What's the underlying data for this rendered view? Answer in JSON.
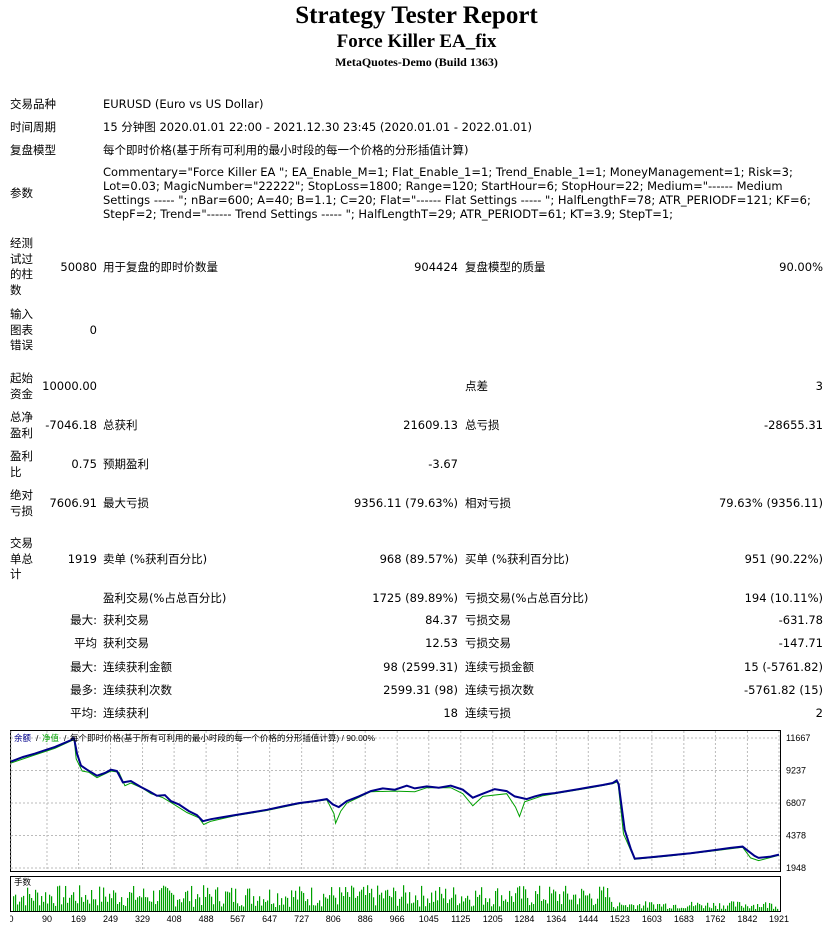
{
  "report": {
    "title": "Strategy Tester Report",
    "ea_name": "Force Killer EA_fix",
    "server": "MetaQuotes-Demo (Build 1363)"
  },
  "info": {
    "symbol_label": "交易品种",
    "symbol_value": "EURUSD (Euro vs US Dollar)",
    "period_label": "时间周期",
    "period_value": "15 分钟图 2020.01.01 22:00 - 2021.12.30 23:45 (2020.01.01 - 2022.01.01)",
    "model_label": "复盘模型",
    "model_value": "每个即时价格(基于所有可利用的最小时段的每一个价格的分形插值计算)",
    "params_label": "参数",
    "params_value": "Commentary=\"Force Killer EA \"; EA_Enable_M=1; Flat_Enable_1=1; Trend_Enable_1=1; MoneyManagement=1; Risk=3; Lot=0.03; MagicNumber=\"22222\"; StopLoss=1800; Range=120; StartHour=6; StopHour=22; Medium=\"------ Medium Settings ----- \"; nBar=600; A=40; B=1.1; C=20; Flat=\"------ Flat Settings ----- \"; HalfLengthF=78; ATR_PERIODF=121; KF=6; StepF=2; Trend=\"------ Trend Settings ----- \"; HalfLengthT=29; ATR_PERIODT=61; KT=3.9; StepT=1;"
  },
  "stats": {
    "bars_label": "经测试过的柱数",
    "bars_value": "50080",
    "ticks_label": "用于复盘的即时价数量",
    "ticks_value": "904424",
    "quality_label": "复盘模型的质量",
    "quality_value": "90.00%",
    "errors_label": "输入图表错误",
    "errors_value": "0",
    "deposit_label": "起始资金",
    "deposit_value": "10000.00",
    "spread_label": "点差",
    "spread_value": "3",
    "net_label": "总净盈利",
    "net_value": "-7046.18",
    "gross_profit_label": "总获利",
    "gross_profit_value": "21609.13",
    "gross_loss_label": "总亏损",
    "gross_loss_value": "-28655.31",
    "pf_label": "盈利比",
    "pf_value": "0.75",
    "payoff_label": "预期盈利",
    "payoff_value": "-3.67",
    "abs_dd_label": "绝对亏损",
    "abs_dd_value": "7606.91",
    "max_dd_label": "最大亏损",
    "max_dd_value": "9356.11 (79.63%)",
    "rel_dd_label": "相对亏损",
    "rel_dd_value": "79.63% (9356.11)",
    "trades_label": "交易单总计",
    "trades_value": "1919",
    "short_label": "卖单 (%获利百分比)",
    "short_value": "968 (89.57%)",
    "long_label": "买单 (%获利百分比)",
    "long_value": "951 (90.22%)",
    "win_label": "盈利交易(%占总百分比)",
    "win_value": "1725 (89.89%)",
    "loss_label": "亏损交易(%占总百分比)",
    "loss_value": "194 (10.11%)",
    "rows": [
      {
        "prefix": "最大:",
        "l1": "获利交易",
        "v1": "84.37",
        "l2": "亏损交易",
        "v2": "-631.78"
      },
      {
        "prefix": "平均",
        "l1": "获利交易",
        "v1": "12.53",
        "l2": "亏损交易",
        "v2": "-147.71"
      },
      {
        "prefix": "最大:",
        "l1": "连续获利金额",
        "v1": "98 (2599.31)",
        "l2": "连续亏损金额",
        "v2": "15 (-5761.82)"
      },
      {
        "prefix": "最多:",
        "l1": "连续获利次数",
        "v1": "2599.31 (98)",
        "l2": "连续亏损次数",
        "v2": "-5761.82 (15)"
      },
      {
        "prefix": "平均:",
        "l1": "连续获利",
        "v1": "18",
        "l2": "连续亏损",
        "v2": "2"
      }
    ]
  },
  "chart_data": {
    "type": "line",
    "legend_balance": "余额",
    "legend_equity": "净值",
    "legend_text": "每个即时价格(基于所有可利用的最小时段的每一个价格的分形插值计算) / 90.00%",
    "volume_label": "手数",
    "y_ticks": [
      "11667",
      "9237",
      "6807",
      "4378",
      "1948"
    ],
    "x_ticks": [
      "0",
      "90",
      "169",
      "249",
      "329",
      "408",
      "488",
      "567",
      "647",
      "727",
      "806",
      "886",
      "966",
      "1045",
      "1125",
      "1205",
      "1284",
      "1364",
      "1444",
      "1523",
      "1603",
      "1683",
      "1762",
      "1842",
      "1921"
    ],
    "ylim": [
      1948,
      11667
    ],
    "xlim": [
      0,
      1921
    ],
    "balance_color": "#00008b",
    "equity_color": "#00a000",
    "balance": [
      [
        0,
        9900
      ],
      [
        30,
        10250
      ],
      [
        60,
        10500
      ],
      [
        90,
        10800
      ],
      [
        110,
        11000
      ],
      [
        130,
        11250
      ],
      [
        150,
        11500
      ],
      [
        155,
        11650
      ],
      [
        158,
        11600
      ],
      [
        165,
        10500
      ],
      [
        175,
        9600
      ],
      [
        190,
        9300
      ],
      [
        215,
        8850
      ],
      [
        235,
        9050
      ],
      [
        250,
        9300
      ],
      [
        265,
        9200
      ],
      [
        280,
        8350
      ],
      [
        300,
        8450
      ],
      [
        325,
        8000
      ],
      [
        345,
        7700
      ],
      [
        365,
        7350
      ],
      [
        385,
        7400
      ],
      [
        400,
        6950
      ],
      [
        420,
        6700
      ],
      [
        445,
        6200
      ],
      [
        465,
        5900
      ],
      [
        480,
        5450
      ],
      [
        500,
        5600
      ],
      [
        530,
        5750
      ],
      [
        560,
        5900
      ],
      [
        600,
        6100
      ],
      [
        640,
        6300
      ],
      [
        680,
        6550
      ],
      [
        720,
        6800
      ],
      [
        760,
        6950
      ],
      [
        790,
        7100
      ],
      [
        805,
        6700
      ],
      [
        820,
        6500
      ],
      [
        840,
        6950
      ],
      [
        870,
        7300
      ],
      [
        900,
        7700
      ],
      [
        930,
        7900
      ],
      [
        960,
        7800
      ],
      [
        990,
        8100
      ],
      [
        1010,
        7900
      ],
      [
        1040,
        8050
      ],
      [
        1070,
        7950
      ],
      [
        1100,
        8100
      ],
      [
        1130,
        7800
      ],
      [
        1155,
        7200
      ],
      [
        1180,
        7500
      ],
      [
        1210,
        7850
      ],
      [
        1240,
        7700
      ],
      [
        1260,
        7300
      ],
      [
        1290,
        7100
      ],
      [
        1310,
        7300
      ],
      [
        1330,
        7450
      ],
      [
        1360,
        7550
      ],
      [
        1390,
        7700
      ],
      [
        1420,
        7850
      ],
      [
        1450,
        8000
      ],
      [
        1480,
        8150
      ],
      [
        1505,
        8300
      ],
      [
        1515,
        8500
      ],
      [
        1520,
        8200
      ],
      [
        1535,
        4800
      ],
      [
        1550,
        3400
      ],
      [
        1560,
        2650
      ],
      [
        1600,
        2750
      ],
      [
        1650,
        2900
      ],
      [
        1700,
        3050
      ],
      [
        1750,
        3250
      ],
      [
        1800,
        3450
      ],
      [
        1830,
        3550
      ],
      [
        1845,
        3200
      ],
      [
        1860,
        2850
      ],
      [
        1870,
        2700
      ],
      [
        1900,
        2800
      ],
      [
        1921,
        2950
      ]
    ],
    "equity": [
      [
        0,
        9800
      ],
      [
        60,
        10400
      ],
      [
        110,
        10900
      ],
      [
        150,
        11450
      ],
      [
        158,
        11550
      ],
      [
        163,
        10100
      ],
      [
        178,
        9200
      ],
      [
        195,
        9100
      ],
      [
        215,
        8700
      ],
      [
        250,
        9200
      ],
      [
        270,
        9100
      ],
      [
        285,
        8100
      ],
      [
        300,
        8300
      ],
      [
        330,
        7900
      ],
      [
        350,
        7500
      ],
      [
        380,
        7200
      ],
      [
        400,
        6850
      ],
      [
        440,
        6100
      ],
      [
        470,
        5700
      ],
      [
        482,
        5200
      ],
      [
        500,
        5450
      ],
      [
        560,
        5850
      ],
      [
        640,
        6250
      ],
      [
        720,
        6750
      ],
      [
        790,
        7050
      ],
      [
        808,
        6000
      ],
      [
        812,
        5300
      ],
      [
        825,
        6200
      ],
      [
        840,
        6800
      ],
      [
        900,
        7650
      ],
      [
        960,
        7700
      ],
      [
        1010,
        7650
      ],
      [
        1040,
        7950
      ],
      [
        1100,
        7950
      ],
      [
        1130,
        7500
      ],
      [
        1155,
        6600
      ],
      [
        1180,
        7300
      ],
      [
        1240,
        7500
      ],
      [
        1262,
        6500
      ],
      [
        1272,
        5800
      ],
      [
        1285,
        6900
      ],
      [
        1330,
        7350
      ],
      [
        1380,
        7600
      ],
      [
        1450,
        7950
      ],
      [
        1505,
        8250
      ],
      [
        1518,
        8400
      ],
      [
        1532,
        4500
      ],
      [
        1560,
        2600
      ],
      [
        1650,
        2850
      ],
      [
        1750,
        3200
      ],
      [
        1830,
        3500
      ],
      [
        1850,
        2700
      ],
      [
        1870,
        2500
      ],
      [
        1921,
        2900
      ]
    ]
  }
}
